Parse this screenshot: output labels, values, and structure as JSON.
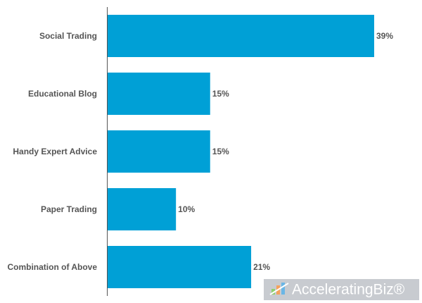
{
  "chart_data": {
    "type": "bar",
    "orientation": "horizontal",
    "categories": [
      "Social Trading",
      "Educational Blog",
      "Handy Expert Advice",
      "Paper Trading",
      "Combination of Above"
    ],
    "values": [
      39,
      15,
      15,
      10,
      21
    ],
    "value_labels": [
      "39%",
      "15%",
      "15%",
      "10%",
      "21%"
    ],
    "color": "#00a0d6",
    "watermark": "AcceleratingBiz®"
  }
}
